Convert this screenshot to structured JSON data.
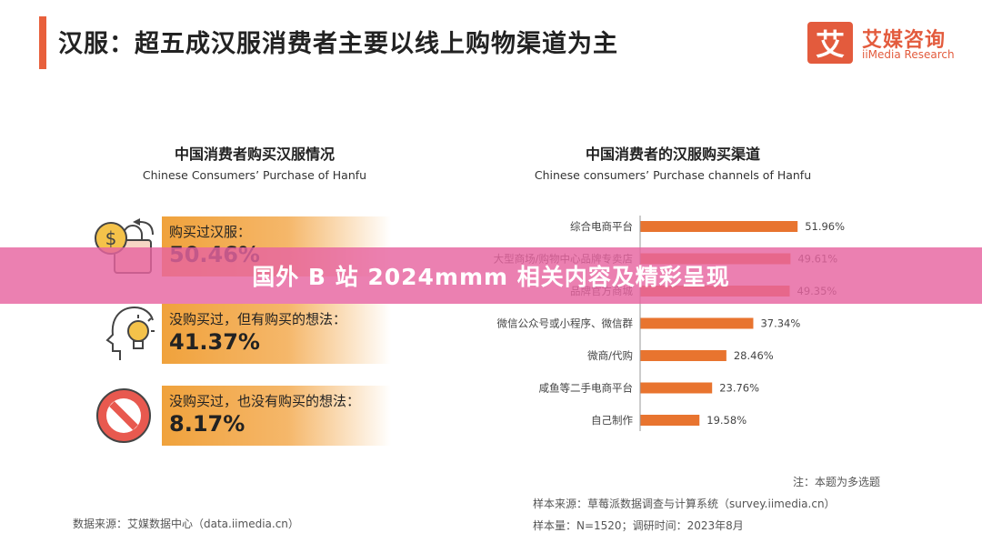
{
  "header": {
    "title": "汉服：超五成汉服消费者主要以线上购物渠道为主"
  },
  "logo": {
    "mark": "艾",
    "name_cn": "艾媒咨询",
    "name_en": "iiMedia Research",
    "color": "#e35b3d"
  },
  "left_panel": {
    "title": "中国消费者购买汉服情况",
    "subtitle": "Chinese Consumers’ Purchase of Hanfu",
    "items": [
      {
        "label": "购买过汉服：",
        "value": "50.46%",
        "icon": "coin-bag-icon"
      },
      {
        "label": "没购买过，但有购买的想法：",
        "value": "41.37%",
        "icon": "head-lightbulb-icon"
      },
      {
        "label": "没购买过，也没有购买的想法：",
        "value": "8.17%",
        "icon": "prohibited-icon"
      }
    ],
    "source": "数据来源：艾媒数据中心（data.iimedia.cn）"
  },
  "chart_data": {
    "type": "bar",
    "orientation": "horizontal",
    "title": "中国消费者的汉服购买渠道",
    "subtitle": "Chinese consumers’ Purchase channels of Hanfu",
    "categories": [
      "综合电商平台",
      "大型商场/购物中心品牌专卖店",
      "品牌官方商城",
      "微信公众号或小程序、微信群",
      "微商/代购",
      "咸鱼等二手电商平台",
      "自己制作"
    ],
    "values": [
      51.96,
      49.61,
      49.35,
      37.34,
      28.46,
      23.76,
      19.58
    ],
    "value_labels": [
      "51.96%",
      "49.61%",
      "49.35%",
      "37.34%",
      "28.46%",
      "23.76%",
      "19.58%"
    ],
    "xlim": [
      0,
      60
    ],
    "bar_color": "#e8742f",
    "grid": false
  },
  "notes": {
    "multi_choice": "注：本题为多选题",
    "sample_source": "样本来源：草莓派数据调查与计算系统（survey.iimedia.cn）",
    "sample_size": "样本量：N=1520；调研时间：2023年8月"
  },
  "overlay": {
    "text": "国外 B 站 2024mmm 相关内容及精彩呈现"
  }
}
